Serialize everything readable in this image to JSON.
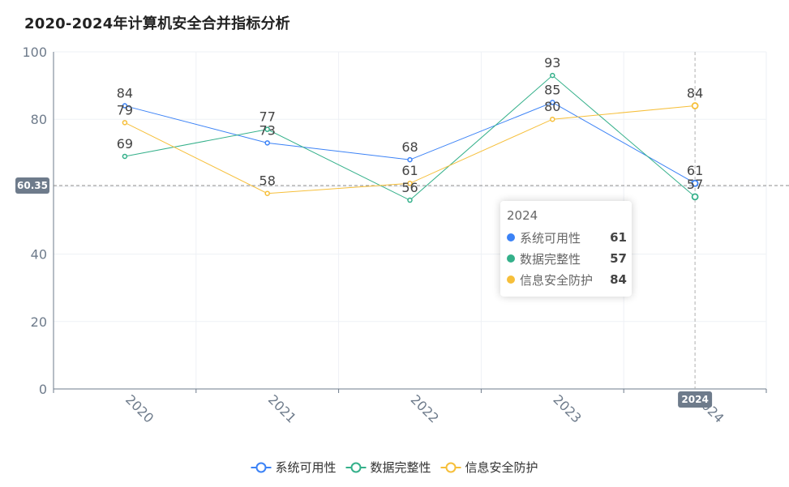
{
  "chart_data": {
    "type": "line",
    "title": "2020-2024年计算机安全合并指标分析",
    "categories": [
      "2020",
      "2021",
      "2022",
      "2023",
      "2024"
    ],
    "series": [
      {
        "name": "系统可用性",
        "values": [
          84,
          73,
          68,
          85,
          61
        ],
        "color": "#3b82f6"
      },
      {
        "name": "数据完整性",
        "values": [
          69,
          77,
          56,
          93,
          57
        ],
        "color": "#34b08a"
      },
      {
        "name": "信息安全防护",
        "values": [
          79,
          58,
          61,
          80,
          84
        ],
        "color": "#f6bf3a"
      }
    ],
    "ylim": [
      0,
      100
    ],
    "yticks": [
      0,
      20,
      40,
      60,
      80,
      100
    ],
    "grid": true,
    "legend_position": "bottom-center",
    "axis_pointer": {
      "y_value": 60.35,
      "y_label": "60.35",
      "x_category": "2024",
      "x_label": "2024"
    },
    "tooltip": {
      "title": "2024",
      "rows": [
        {
          "name": "系统可用性",
          "value": "61",
          "color": "#3b82f6"
        },
        {
          "name": "数据完整性",
          "value": "57",
          "color": "#34b08a"
        },
        {
          "name": "信息安全防护",
          "value": "84",
          "color": "#f6bf3a"
        }
      ]
    }
  }
}
